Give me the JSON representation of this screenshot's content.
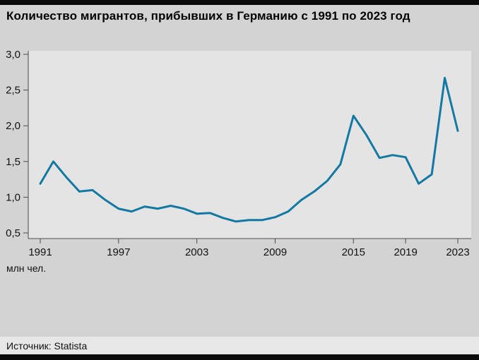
{
  "title": "Количество мигрантов, прибывших в Германию с 1991 по 2023 год",
  "unit_label": "млн чел.",
  "source": "Источник: Statista",
  "colors": {
    "line": "#1379a3",
    "page_bg": "#d3d3d3",
    "plot_bg": "#e4e4e4",
    "axis": "#4d4d4d",
    "bar": "#0a0a0a"
  },
  "chart_data": {
    "type": "line",
    "title": "Количество мигрантов, прибывших в Германию с 1991 по 2023 год",
    "xlabel": "",
    "ylabel": "млн чел.",
    "ylim": [
      0.5,
      3.0
    ],
    "grid": false,
    "legend": false,
    "x": [
      1991,
      1992,
      1993,
      1994,
      1995,
      1996,
      1997,
      1998,
      1999,
      2000,
      2001,
      2002,
      2003,
      2004,
      2005,
      2006,
      2007,
      2008,
      2009,
      2010,
      2011,
      2012,
      2013,
      2014,
      2015,
      2016,
      2017,
      2018,
      2019,
      2020,
      2021,
      2022,
      2023
    ],
    "values": [
      1.19,
      1.5,
      1.28,
      1.08,
      1.1,
      0.96,
      0.84,
      0.8,
      0.87,
      0.84,
      0.88,
      0.84,
      0.77,
      0.78,
      0.71,
      0.66,
      0.68,
      0.68,
      0.72,
      0.8,
      0.96,
      1.08,
      1.23,
      1.46,
      2.14,
      1.87,
      1.55,
      1.59,
      1.56,
      1.19,
      1.32,
      2.67,
      1.93
    ],
    "yticks": [
      {
        "v": 3.0,
        "label": "3,0"
      },
      {
        "v": 2.5,
        "label": "2,5"
      },
      {
        "v": 2.0,
        "label": "2,0"
      },
      {
        "v": 1.5,
        "label": "1,5"
      },
      {
        "v": 1.0,
        "label": "1,0"
      },
      {
        "v": 0.5,
        "label": "0,5"
      }
    ],
    "xticks": [
      {
        "v": 1991,
        "label": "1991"
      },
      {
        "v": 1997,
        "label": "1997"
      },
      {
        "v": 2003,
        "label": "2003"
      },
      {
        "v": 2009,
        "label": "2009"
      },
      {
        "v": 2015,
        "label": "2015"
      },
      {
        "v": 2019,
        "label": "2019"
      },
      {
        "v": 2023,
        "label": "2023"
      }
    ]
  }
}
